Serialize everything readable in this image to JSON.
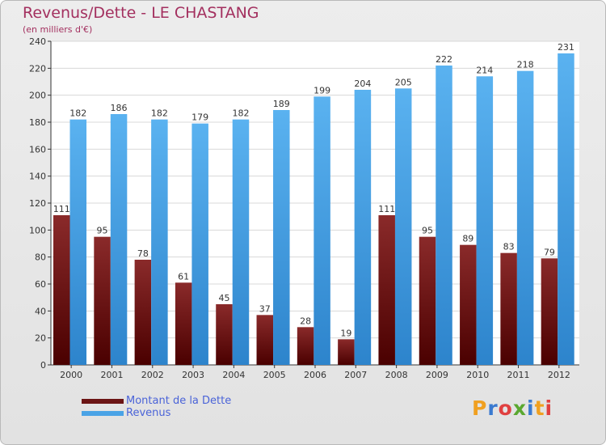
{
  "title": "Revenus/Dette - LE CHASTANG",
  "subtitle": "(en milliers d'€)",
  "colors": {
    "dette": "#6b1414",
    "revenus": "#4aa3e6",
    "title": "#a3305f",
    "legend_text": "#4a63d8"
  },
  "legend": {
    "dette_label": "Montant de la Dette",
    "revenus_label": "Revenus"
  },
  "logo": {
    "text": "Proxiti"
  },
  "chart_data": {
    "type": "bar",
    "title": "Revenus/Dette - LE CHASTANG",
    "subtitle": "(en milliers d'€)",
    "categories": [
      "2000",
      "2001",
      "2002",
      "2003",
      "2004",
      "2005",
      "2006",
      "2007",
      "2008",
      "2009",
      "2010",
      "2011",
      "2012"
    ],
    "series": [
      {
        "name": "Montant de la Dette",
        "values": [
          111,
          95,
          78,
          61,
          45,
          37,
          28,
          19,
          111,
          95,
          89,
          83,
          79
        ]
      },
      {
        "name": "Revenus",
        "values": [
          182,
          186,
          182,
          179,
          182,
          189,
          199,
          204,
          205,
          222,
          214,
          218,
          231
        ]
      }
    ],
    "ylim": [
      0,
      240
    ],
    "yticks": [
      0,
      20,
      40,
      60,
      80,
      100,
      120,
      140,
      160,
      180,
      200,
      220,
      240
    ],
    "grid": true,
    "legend_position": "bottom-left"
  }
}
